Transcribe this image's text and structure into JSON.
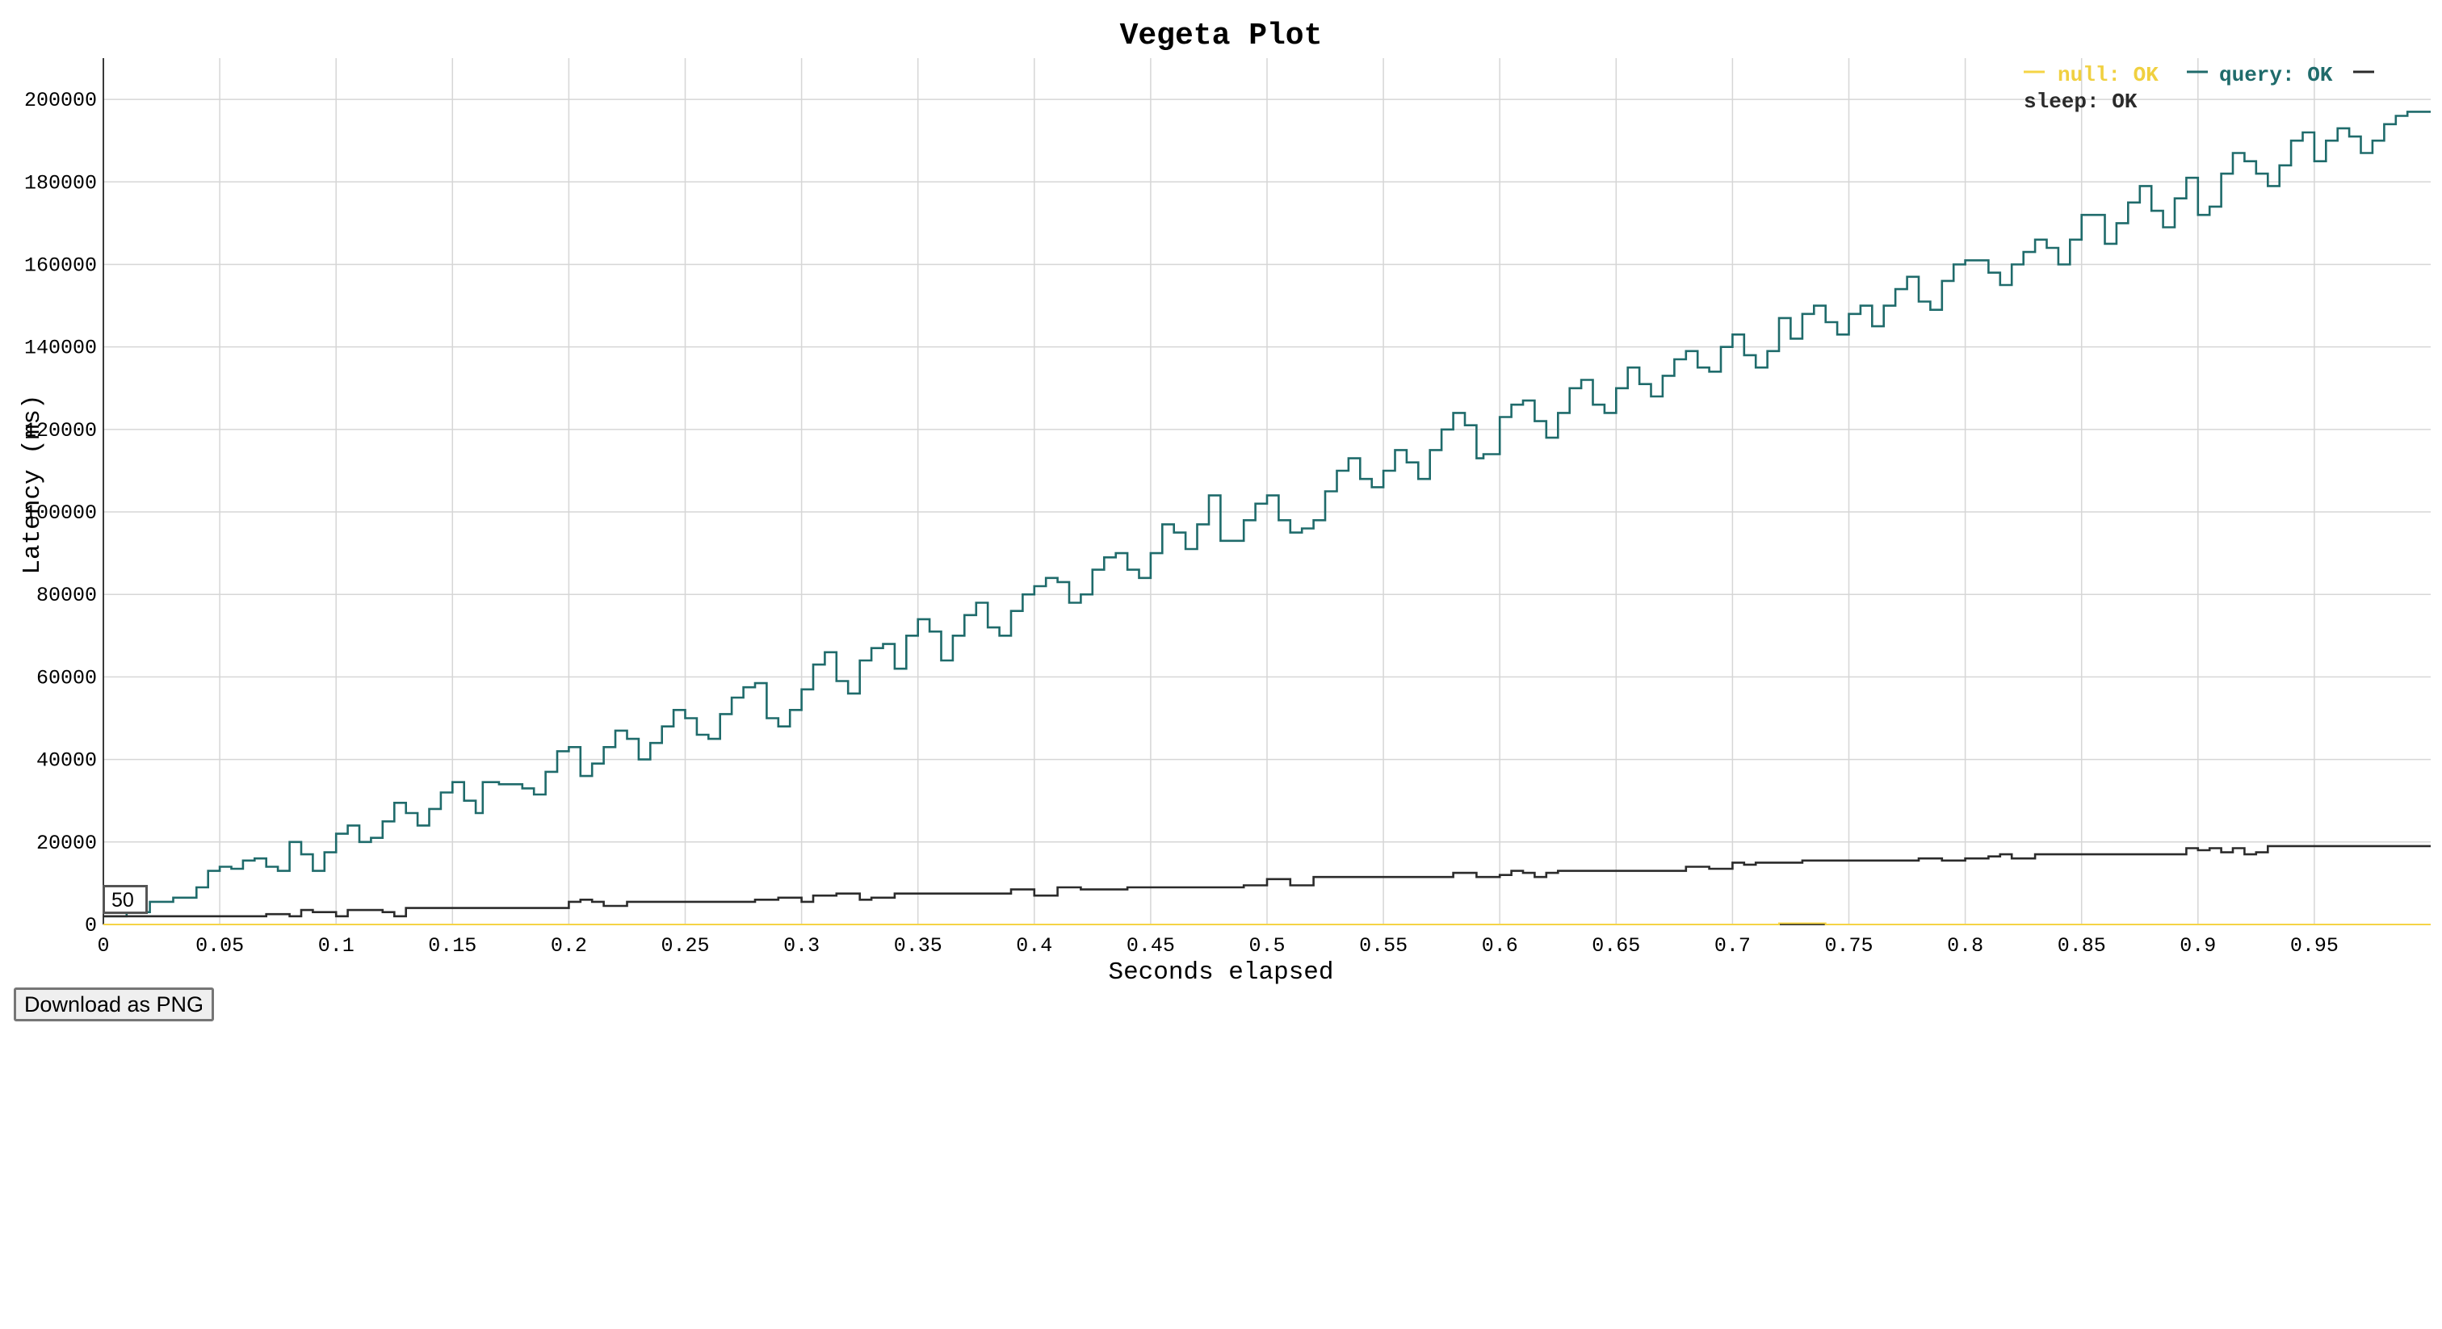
{
  "chart_data": {
    "type": "line",
    "title": "Vegeta Plot",
    "xlabel": "Seconds elapsed",
    "ylabel": "Latency (ms)",
    "xlim": [
      0,
      1.0
    ],
    "ylim": [
      0,
      210000
    ],
    "x_ticks": [
      "0",
      "0.05",
      "0.1",
      "0.15",
      "0.2",
      "0.25",
      "0.3",
      "0.35",
      "0.4",
      "0.45",
      "0.5",
      "0.55",
      "0.6",
      "0.65",
      "0.7",
      "0.75",
      "0.8",
      "0.85",
      "0.9",
      "0.95"
    ],
    "y_ticks": [
      "0",
      "20000",
      "40000",
      "60000",
      "80000",
      "100000",
      "120000",
      "140000",
      "160000",
      "180000",
      "200000"
    ],
    "grid": true,
    "legend_position": "top-right",
    "series": [
      {
        "name": "null: OK",
        "color": "#f5d445",
        "x": [
          0,
          0.2,
          0.4,
          0.6,
          0.7,
          0.72,
          0.74,
          0.8,
          1.0
        ],
        "y": [
          0,
          0,
          0,
          0,
          0,
          300,
          0,
          0,
          0
        ]
      },
      {
        "name": "query: OK",
        "color": "#1f6b6b",
        "x": [
          0,
          0.01,
          0.02,
          0.03,
          0.04,
          0.045,
          0.05,
          0.055,
          0.06,
          0.065,
          0.07,
          0.075,
          0.08,
          0.085,
          0.09,
          0.095,
          0.1,
          0.105,
          0.11,
          0.115,
          0.12,
          0.125,
          0.13,
          0.135,
          0.14,
          0.145,
          0.15,
          0.155,
          0.16,
          0.163,
          0.17,
          0.175,
          0.18,
          0.185,
          0.19,
          0.195,
          0.2,
          0.205,
          0.21,
          0.215,
          0.22,
          0.225,
          0.23,
          0.235,
          0.24,
          0.245,
          0.25,
          0.255,
          0.26,
          0.265,
          0.27,
          0.275,
          0.28,
          0.285,
          0.29,
          0.295,
          0.3,
          0.305,
          0.31,
          0.315,
          0.32,
          0.325,
          0.33,
          0.335,
          0.34,
          0.345,
          0.35,
          0.355,
          0.36,
          0.365,
          0.37,
          0.375,
          0.38,
          0.385,
          0.39,
          0.395,
          0.4,
          0.405,
          0.41,
          0.415,
          0.42,
          0.425,
          0.43,
          0.435,
          0.44,
          0.445,
          0.45,
          0.455,
          0.46,
          0.465,
          0.47,
          0.475,
          0.48,
          0.485,
          0.49,
          0.495,
          0.5,
          0.505,
          0.51,
          0.515,
          0.52,
          0.525,
          0.53,
          0.535,
          0.54,
          0.545,
          0.55,
          0.555,
          0.56,
          0.565,
          0.57,
          0.575,
          0.58,
          0.585,
          0.59,
          0.593,
          0.6,
          0.605,
          0.61,
          0.615,
          0.62,
          0.625,
          0.63,
          0.635,
          0.64,
          0.645,
          0.65,
          0.655,
          0.66,
          0.665,
          0.67,
          0.675,
          0.68,
          0.685,
          0.69,
          0.695,
          0.7,
          0.705,
          0.71,
          0.715,
          0.72,
          0.725,
          0.73,
          0.735,
          0.74,
          0.745,
          0.75,
          0.755,
          0.76,
          0.765,
          0.77,
          0.775,
          0.78,
          0.785,
          0.79,
          0.795,
          0.8,
          0.805,
          0.81,
          0.815,
          0.82,
          0.825,
          0.83,
          0.835,
          0.84,
          0.845,
          0.85,
          0.855,
          0.86,
          0.865,
          0.87,
          0.875,
          0.88,
          0.885,
          0.89,
          0.895,
          0.9,
          0.905,
          0.91,
          0.915,
          0.92,
          0.925,
          0.93,
          0.935,
          0.94,
          0.945,
          0.95,
          0.955,
          0.96,
          0.965,
          0.97,
          0.975,
          0.98,
          0.985,
          0.99,
          0.995,
          1.0
        ],
        "y": [
          2000,
          3000,
          5500,
          6500,
          9000,
          13000,
          14000,
          13500,
          15500,
          16000,
          14000,
          13000,
          20000,
          17000,
          13000,
          17500,
          22000,
          24000,
          20000,
          21000,
          25000,
          29500,
          27000,
          24000,
          28000,
          32000,
          34500,
          30000,
          27000,
          34500,
          34000,
          34000,
          33000,
          31500,
          37000,
          42000,
          43000,
          36000,
          39000,
          43000,
          47000,
          45000,
          40000,
          44000,
          48000,
          52000,
          50000,
          46000,
          45000,
          51000,
          55000,
          57500,
          58500,
          50000,
          48000,
          52000,
          57000,
          63000,
          66000,
          59000,
          56000,
          64000,
          67000,
          68000,
          62000,
          70000,
          74000,
          71000,
          64000,
          70000,
          75000,
          78000,
          72000,
          70000,
          76000,
          80000,
          82000,
          84000,
          83000,
          78000,
          80000,
          86000,
          89000,
          90000,
          86000,
          84000,
          90000,
          97000,
          95000,
          91000,
          97000,
          104000,
          93000,
          93000,
          98000,
          102000,
          104000,
          98000,
          95000,
          96000,
          98000,
          105000,
          110000,
          113000,
          108000,
          106000,
          110000,
          115000,
          112000,
          108000,
          115000,
          120000,
          124000,
          121000,
          113000,
          114000,
          123000,
          126000,
          127000,
          122000,
          118000,
          124000,
          130000,
          132000,
          126000,
          124000,
          130000,
          135000,
          131000,
          128000,
          133000,
          137000,
          139000,
          135000,
          134000,
          140000,
          143000,
          138000,
          135000,
          139000,
          147000,
          142000,
          148000,
          150000,
          146000,
          143000,
          148000,
          150000,
          145000,
          150000,
          154000,
          157000,
          151000,
          149000,
          156000,
          160000,
          161000,
          161000,
          158000,
          155000,
          160000,
          163000,
          166000,
          164000,
          160000,
          166000,
          172000,
          172000,
          165000,
          170000,
          175000,
          179000,
          173000,
          169000,
          176000,
          181000,
          172000,
          174000,
          182000,
          187000,
          185000,
          182000,
          179000,
          184000,
          190000,
          192000,
          185000,
          190000,
          193000,
          191000,
          187000,
          190000,
          194000,
          196000,
          197000,
          197000,
          197000
        ]
      },
      {
        "name": "sleep: OK",
        "color": "#2b2b2b",
        "x": [
          0,
          0.02,
          0.04,
          0.06,
          0.07,
          0.08,
          0.085,
          0.09,
          0.1,
          0.105,
          0.115,
          0.12,
          0.125,
          0.13,
          0.15,
          0.17,
          0.185,
          0.195,
          0.2,
          0.205,
          0.21,
          0.215,
          0.225,
          0.25,
          0.27,
          0.28,
          0.29,
          0.3,
          0.305,
          0.315,
          0.325,
          0.33,
          0.34,
          0.35,
          0.38,
          0.39,
          0.395,
          0.4,
          0.41,
          0.42,
          0.44,
          0.45,
          0.47,
          0.49,
          0.5,
          0.505,
          0.51,
          0.52,
          0.55,
          0.57,
          0.58,
          0.59,
          0.6,
          0.605,
          0.61,
          0.615,
          0.62,
          0.625,
          0.65,
          0.67,
          0.68,
          0.69,
          0.7,
          0.705,
          0.71,
          0.72,
          0.73,
          0.75,
          0.77,
          0.78,
          0.79,
          0.8,
          0.81,
          0.815,
          0.82,
          0.83,
          0.85,
          0.87,
          0.89,
          0.893,
          0.895,
          0.9,
          0.905,
          0.91,
          0.915,
          0.92,
          0.925,
          0.93,
          0.95,
          0.97,
          1.0
        ],
        "y": [
          2000,
          2000,
          2000,
          2000,
          2500,
          2000,
          3500,
          3000,
          2000,
          3500,
          3500,
          3000,
          2000,
          4000,
          4000,
          4000,
          4000,
          4000,
          5500,
          6000,
          5500,
          4500,
          5500,
          5500,
          5500,
          6000,
          6500,
          5500,
          7000,
          7500,
          6000,
          6500,
          7500,
          7500,
          7500,
          8500,
          8500,
          7000,
          9000,
          8500,
          9000,
          9000,
          9000,
          9500,
          11000,
          11000,
          9500,
          11500,
          11500,
          11500,
          12500,
          11500,
          12000,
          13000,
          12500,
          11500,
          12500,
          13000,
          13000,
          13000,
          14000,
          13500,
          15000,
          14500,
          15000,
          15000,
          15500,
          15500,
          15500,
          16000,
          15500,
          16000,
          16500,
          17000,
          16000,
          17000,
          17000,
          17000,
          17000,
          17000,
          18500,
          18000,
          18500,
          17500,
          18500,
          17000,
          17500,
          19000,
          19000,
          19000,
          19000
        ]
      }
    ]
  },
  "controls": {
    "roll_value": "50",
    "download_label": "Download as PNG"
  }
}
